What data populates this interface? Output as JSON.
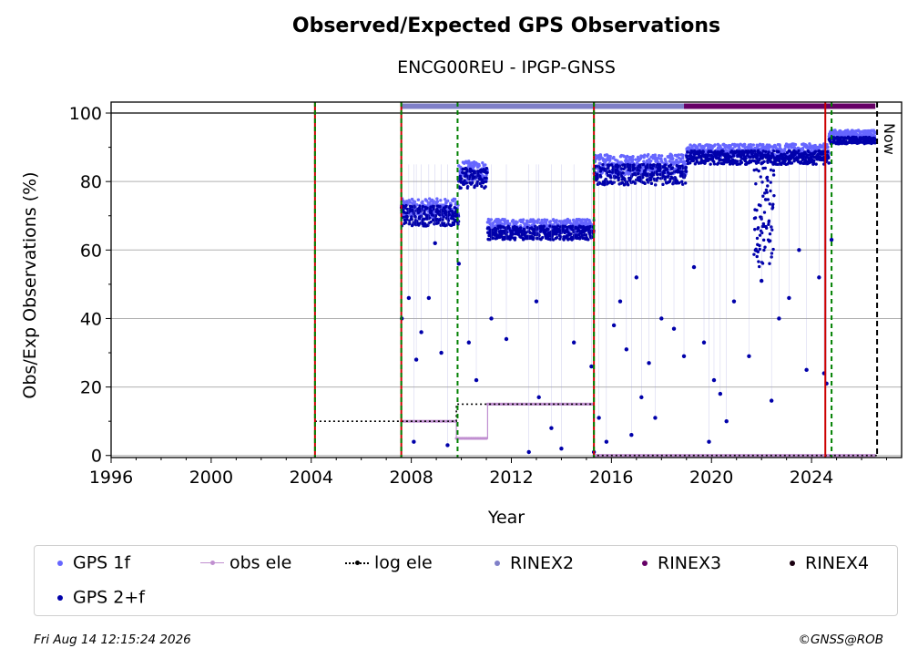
{
  "chart_data": {
    "type": "scatter",
    "title": "Observed/Expected GPS Observations",
    "subtitle": "ENCG00REU - IPGP-GNSS",
    "xlabel": "Year",
    "ylabel": "Obs/Exp Observations (%)",
    "xlim": [
      1996,
      2027.6
    ],
    "ylim": [
      -0.6,
      103.2
    ],
    "xticks": [
      1996,
      2000,
      2004,
      2008,
      2012,
      2016,
      2020,
      2024
    ],
    "yticks": [
      0,
      20,
      40,
      60,
      80,
      100
    ],
    "grid": "horizontal",
    "now_label": "Now",
    "now_x": 2026.62,
    "series": [
      {
        "name": "GPS 1f",
        "color": "#6666ff",
        "segments": [
          {
            "start": 2007.6,
            "end": 2009.9,
            "y": 72,
            "spread": 3
          },
          {
            "start": 2009.9,
            "end": 2011.05,
            "y": 83,
            "spread": 3
          },
          {
            "start": 2011.05,
            "end": 2015.3,
            "y": 67,
            "spread": 2
          },
          {
            "start": 2015.3,
            "end": 2019.0,
            "y": 85,
            "spread": 3
          },
          {
            "start": 2019.0,
            "end": 2024.7,
            "y": 89,
            "spread": 2
          },
          {
            "start": 2024.7,
            "end": 2026.55,
            "y": 94,
            "spread": 1
          }
        ]
      },
      {
        "name": "GPS 2+f",
        "color": "#0000aa",
        "segments": [
          {
            "start": 2007.6,
            "end": 2009.9,
            "y": 70,
            "spread": 3
          },
          {
            "start": 2009.9,
            "end": 2011.05,
            "y": 81,
            "spread": 3
          },
          {
            "start": 2011.05,
            "end": 2015.3,
            "y": 65,
            "spread": 2
          },
          {
            "start": 2015.3,
            "end": 2019.0,
            "y": 82,
            "spread": 3
          },
          {
            "start": 2019.0,
            "end": 2024.7,
            "y": 87,
            "spread": 2
          },
          {
            "start": 2024.7,
            "end": 2026.55,
            "y": 92,
            "spread": 1
          }
        ],
        "dips": [
          [
            2007.62,
            40
          ],
          [
            2007.9,
            46
          ],
          [
            2008.1,
            4
          ],
          [
            2008.2,
            28
          ],
          [
            2008.4,
            36
          ],
          [
            2008.7,
            46
          ],
          [
            2008.95,
            62
          ],
          [
            2009.2,
            30
          ],
          [
            2009.45,
            3
          ],
          [
            2009.9,
            56
          ],
          [
            2010.3,
            33
          ],
          [
            2010.6,
            22
          ],
          [
            2011.2,
            40
          ],
          [
            2011.8,
            34
          ],
          [
            2012.7,
            1
          ],
          [
            2013.0,
            45
          ],
          [
            2013.1,
            17
          ],
          [
            2013.6,
            8
          ],
          [
            2014.0,
            2
          ],
          [
            2014.5,
            33
          ],
          [
            2015.2,
            26
          ],
          [
            2015.3,
            1
          ],
          [
            2015.5,
            11
          ],
          [
            2015.8,
            4
          ],
          [
            2016.1,
            38
          ],
          [
            2016.35,
            45
          ],
          [
            2016.6,
            31
          ],
          [
            2016.8,
            6
          ],
          [
            2017.0,
            52
          ],
          [
            2017.2,
            17
          ],
          [
            2017.5,
            27
          ],
          [
            2017.75,
            11
          ],
          [
            2018.0,
            40
          ],
          [
            2018.5,
            37
          ],
          [
            2018.9,
            29
          ],
          [
            2019.3,
            55
          ],
          [
            2019.7,
            33
          ],
          [
            2019.9,
            4
          ],
          [
            2020.1,
            22
          ],
          [
            2020.35,
            18
          ],
          [
            2020.6,
            10
          ],
          [
            2020.9,
            45
          ],
          [
            2021.5,
            29
          ],
          [
            2022.0,
            51
          ],
          [
            2022.4,
            16
          ],
          [
            2022.7,
            40
          ],
          [
            2023.1,
            46
          ],
          [
            2023.5,
            60
          ],
          [
            2023.8,
            25
          ],
          [
            2024.3,
            52
          ],
          [
            2024.5,
            24
          ],
          [
            2024.6,
            21
          ],
          [
            2024.8,
            63
          ]
        ]
      },
      {
        "name": "obs ele",
        "color": "#c08fd0",
        "steps": [
          {
            "start": 2007.6,
            "end": 2009.8,
            "y": 10
          },
          {
            "start": 2009.8,
            "end": 2011.05,
            "y": 5
          },
          {
            "start": 2011.05,
            "end": 2015.3,
            "y": 15
          },
          {
            "start": 2015.3,
            "end": 2026.55,
            "y": 0
          }
        ]
      },
      {
        "name": "log ele",
        "color": "#000000",
        "steps": [
          {
            "start": 2004.15,
            "end": 2007.6,
            "y": 10
          },
          {
            "start": 2007.6,
            "end": 2009.8,
            "y": 10
          },
          {
            "start": 2009.8,
            "end": 2015.3,
            "y": 15
          },
          {
            "start": 2015.3,
            "end": 2026.62,
            "y": 0
          }
        ]
      },
      {
        "name": "RINEX2",
        "color": "#8080c8",
        "start": 2007.6,
        "end": 2018.9,
        "y": 102
      },
      {
        "name": "RINEX3",
        "color": "#660066",
        "start": 2018.9,
        "end": 2026.55,
        "y": 102
      },
      {
        "name": "RINEX4",
        "color": "#1a0010"
      }
    ],
    "vlines": [
      {
        "x": 2004.15,
        "style": "red-green"
      },
      {
        "x": 2007.6,
        "style": "red-green"
      },
      {
        "x": 2009.85,
        "style": "green"
      },
      {
        "x": 2015.3,
        "style": "red-green"
      },
      {
        "x": 2024.55,
        "style": "red"
      },
      {
        "x": 2024.8,
        "style": "green"
      },
      {
        "x": 2026.62,
        "style": "now"
      }
    ]
  },
  "legend": {
    "gps1f": "GPS 1f",
    "obsele": "obs ele",
    "logele": "log ele",
    "rinex2": "RINEX2",
    "rinex3": "RINEX3",
    "rinex4": "RINEX4",
    "gps2f": "GPS 2+f"
  },
  "footer": {
    "date": "Fri Aug 14 12:15:24 2026",
    "credit": "©GNSS@ROB"
  }
}
